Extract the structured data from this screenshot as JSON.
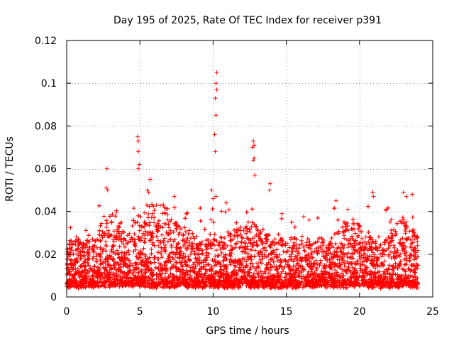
{
  "chart_data": {
    "type": "scatter",
    "title": "Day 195 of 2025, Rate Of TEC Index for receiver p391",
    "xlabel": "GPS time / hours",
    "ylabel": "ROTI / TECUs",
    "xlim": [
      0,
      25
    ],
    "ylim": [
      0,
      0.12
    ],
    "xticks": [
      0,
      5,
      10,
      15,
      20,
      25
    ],
    "xtick_labels": [
      "0",
      "5",
      "10",
      "15",
      "20",
      "25"
    ],
    "yticks": [
      0,
      0.02,
      0.04,
      0.06,
      0.08,
      0.1,
      0.12
    ],
    "ytick_labels": [
      "0",
      "0.02",
      "0.04",
      "0.06",
      "0.08",
      "0.1",
      "0.12"
    ],
    "grid": true,
    "marker": "+",
    "color": "#ff0000",
    "series": [
      {
        "name": "ROTI",
        "notable_points": [
          {
            "x": 2.75,
            "y": 0.06
          },
          {
            "x": 2.7,
            "y": 0.051
          },
          {
            "x": 2.8,
            "y": 0.05
          },
          {
            "x": 4.85,
            "y": 0.075
          },
          {
            "x": 4.9,
            "y": 0.073
          },
          {
            "x": 4.9,
            "y": 0.068
          },
          {
            "x": 4.95,
            "y": 0.062
          },
          {
            "x": 4.9,
            "y": 0.06
          },
          {
            "x": 5.7,
            "y": 0.055
          },
          {
            "x": 5.5,
            "y": 0.05
          },
          {
            "x": 5.6,
            "y": 0.049
          },
          {
            "x": 7.35,
            "y": 0.047
          },
          {
            "x": 9.9,
            "y": 0.05
          },
          {
            "x": 10.0,
            "y": 0.046
          },
          {
            "x": 10.25,
            "y": 0.105
          },
          {
            "x": 10.2,
            "y": 0.1
          },
          {
            "x": 10.25,
            "y": 0.097
          },
          {
            "x": 10.15,
            "y": 0.093
          },
          {
            "x": 10.2,
            "y": 0.085
          },
          {
            "x": 10.1,
            "y": 0.076
          },
          {
            "x": 10.15,
            "y": 0.068
          },
          {
            "x": 10.2,
            "y": 0.047
          },
          {
            "x": 10.9,
            "y": 0.044
          },
          {
            "x": 12.75,
            "y": 0.073
          },
          {
            "x": 12.8,
            "y": 0.071
          },
          {
            "x": 12.7,
            "y": 0.07
          },
          {
            "x": 12.8,
            "y": 0.065
          },
          {
            "x": 12.75,
            "y": 0.064
          },
          {
            "x": 12.85,
            "y": 0.057
          },
          {
            "x": 13.9,
            "y": 0.053
          },
          {
            "x": 13.85,
            "y": 0.05
          },
          {
            "x": 18.4,
            "y": 0.045
          },
          {
            "x": 19.2,
            "y": 0.041
          },
          {
            "x": 20.9,
            "y": 0.049
          },
          {
            "x": 20.95,
            "y": 0.047
          },
          {
            "x": 21.8,
            "y": 0.041
          },
          {
            "x": 23.0,
            "y": 0.049
          },
          {
            "x": 23.2,
            "y": 0.047
          },
          {
            "x": 23.6,
            "y": 0.048
          }
        ]
      }
    ]
  }
}
